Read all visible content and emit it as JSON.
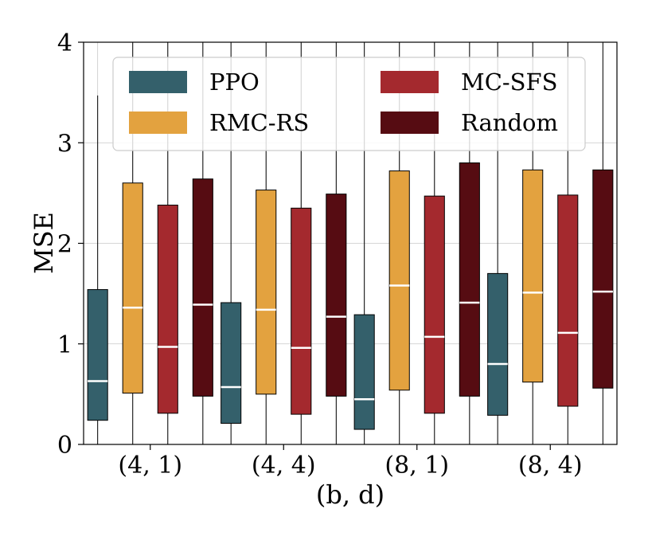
{
  "chart_data": {
    "type": "boxplot",
    "title": "",
    "xlabel": "(b, d)",
    "ylabel": "MSE",
    "ylim": [
      0,
      4
    ],
    "yticks": [
      0,
      1,
      2,
      3,
      4
    ],
    "grid": true,
    "legend_position": "top",
    "categories": [
      "(4, 1)",
      "(4, 4)",
      "(8, 1)",
      "(8, 4)"
    ],
    "series": [
      {
        "name": "PPO",
        "color": "#34606b",
        "boxes": [
          {
            "whisker_low": 0.0,
            "q1": 0.24,
            "median": 0.63,
            "q3": 1.54,
            "whisker_high": 3.47
          },
          {
            "whisker_low": 0.0,
            "q1": 0.21,
            "median": 0.57,
            "q3": 1.41,
            "whisker_high": 4.0
          },
          {
            "whisker_low": 0.0,
            "q1": 0.15,
            "median": 0.45,
            "q3": 1.29,
            "whisker_high": 4.0
          },
          {
            "whisker_low": 0.0,
            "q1": 0.29,
            "median": 0.8,
            "q3": 1.7,
            "whisker_high": 4.0
          }
        ]
      },
      {
        "name": "RMC-RS",
        "color": "#e3a23f",
        "boxes": [
          {
            "whisker_low": 0.0,
            "q1": 0.51,
            "median": 1.36,
            "q3": 2.6,
            "whisker_high": 4.0
          },
          {
            "whisker_low": 0.0,
            "q1": 0.5,
            "median": 1.34,
            "q3": 2.53,
            "whisker_high": 4.0
          },
          {
            "whisker_low": 0.0,
            "q1": 0.54,
            "median": 1.58,
            "q3": 2.72,
            "whisker_high": 4.0
          },
          {
            "whisker_low": 0.0,
            "q1": 0.62,
            "median": 1.51,
            "q3": 2.73,
            "whisker_high": 4.0
          }
        ]
      },
      {
        "name": "MC-SFS",
        "color": "#a4292e",
        "boxes": [
          {
            "whisker_low": 0.0,
            "q1": 0.31,
            "median": 0.97,
            "q3": 2.38,
            "whisker_high": 4.0
          },
          {
            "whisker_low": 0.0,
            "q1": 0.3,
            "median": 0.96,
            "q3": 2.35,
            "whisker_high": 4.0
          },
          {
            "whisker_low": 0.0,
            "q1": 0.31,
            "median": 1.07,
            "q3": 2.47,
            "whisker_high": 4.0
          },
          {
            "whisker_low": 0.0,
            "q1": 0.38,
            "median": 1.11,
            "q3": 2.48,
            "whisker_high": 4.0
          }
        ]
      },
      {
        "name": "Random",
        "color": "#560c12",
        "boxes": [
          {
            "whisker_low": 0.0,
            "q1": 0.48,
            "median": 1.39,
            "q3": 2.64,
            "whisker_high": 4.0
          },
          {
            "whisker_low": 0.0,
            "q1": 0.48,
            "median": 1.27,
            "q3": 2.49,
            "whisker_high": 4.0
          },
          {
            "whisker_low": 0.0,
            "q1": 0.48,
            "median": 1.41,
            "q3": 2.8,
            "whisker_high": 4.0
          },
          {
            "whisker_low": 0.0,
            "q1": 0.56,
            "median": 1.52,
            "q3": 2.73,
            "whisker_high": 4.0
          }
        ]
      }
    ]
  }
}
